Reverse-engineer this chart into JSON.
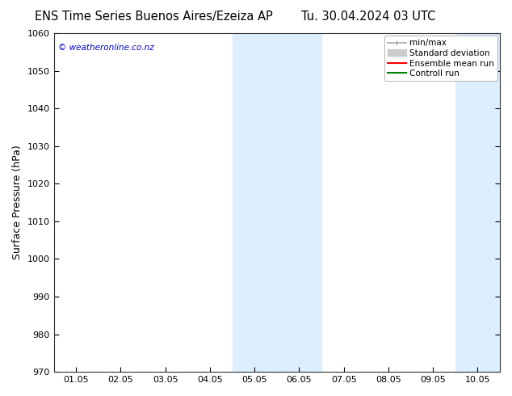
{
  "title_left": "ENS Time Series Buenos Aires/Ezeiza AP",
  "title_right": "Tu. 30.04.2024 03 UTC",
  "ylabel": "Surface Pressure (hPa)",
  "ylim": [
    970,
    1060
  ],
  "yticks": [
    970,
    980,
    990,
    1000,
    1010,
    1020,
    1030,
    1040,
    1050,
    1060
  ],
  "xtick_labels": [
    "01.05",
    "02.05",
    "03.05",
    "04.05",
    "05.05",
    "06.05",
    "07.05",
    "08.05",
    "09.05",
    "10.05"
  ],
  "xtick_positions": [
    0,
    1,
    2,
    3,
    4,
    5,
    6,
    7,
    8,
    9
  ],
  "xmin": -0.5,
  "xmax": 9.5,
  "shaded_bands": [
    {
      "x_start": 3.5,
      "x_end": 5.5
    },
    {
      "x_start": 8.5,
      "x_end": 9.5
    }
  ],
  "shade_color": "#ddeeff",
  "watermark": "© weatheronline.co.nz",
  "watermark_color": "#0000cc",
  "legend_entries": [
    {
      "label": "min/max",
      "color": "#aaaaaa",
      "lw": 1.2
    },
    {
      "label": "Standard deviation",
      "color": "#cccccc",
      "lw": 7
    },
    {
      "label": "Ensemble mean run",
      "color": "#ff0000",
      "lw": 1.5
    },
    {
      "label": "Controll run",
      "color": "#008000",
      "lw": 1.5
    }
  ],
  "bg_color": "#ffffff",
  "title_fontsize": 10.5,
  "tick_fontsize": 8,
  "ylabel_fontsize": 9,
  "watermark_fontsize": 7.5,
  "legend_fontsize": 7.5
}
